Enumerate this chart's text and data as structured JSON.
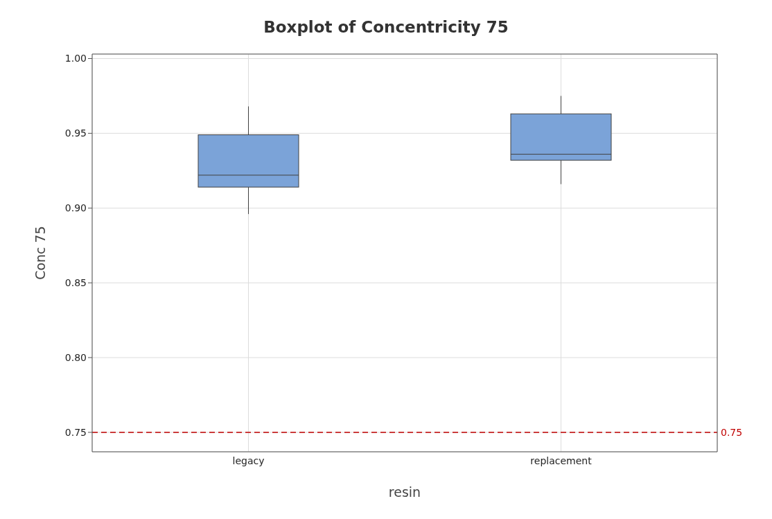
{
  "chart_data": {
    "type": "box",
    "title": "Boxplot of Concentricity 75",
    "xlabel": "resin",
    "ylabel": "Conc 75",
    "categories": [
      "legacy",
      "replacement"
    ],
    "boxes": [
      {
        "low": 0.896,
        "q1": 0.914,
        "median": 0.922,
        "q3": 0.949,
        "high": 0.968
      },
      {
        "low": 0.916,
        "q1": 0.932,
        "median": 0.936,
        "q3": 0.963,
        "high": 0.975
      }
    ],
    "color": "#7ba3d8",
    "ylim": [
      0.737,
      1.003
    ],
    "yticks": [
      {
        "value": 0.75,
        "label": "0.75"
      },
      {
        "value": 0.8,
        "label": "0.80"
      },
      {
        "value": 0.85,
        "label": "0.85"
      },
      {
        "value": 0.9,
        "label": "0.90"
      },
      {
        "value": 0.95,
        "label": "0.95"
      },
      {
        "value": 1.0,
        "label": "1.00"
      }
    ],
    "grid": true,
    "ref_lines": [
      {
        "axis": "y",
        "value": 0.75,
        "label": "0.75",
        "color": "#c00000",
        "line_style": "dashed"
      }
    ]
  }
}
